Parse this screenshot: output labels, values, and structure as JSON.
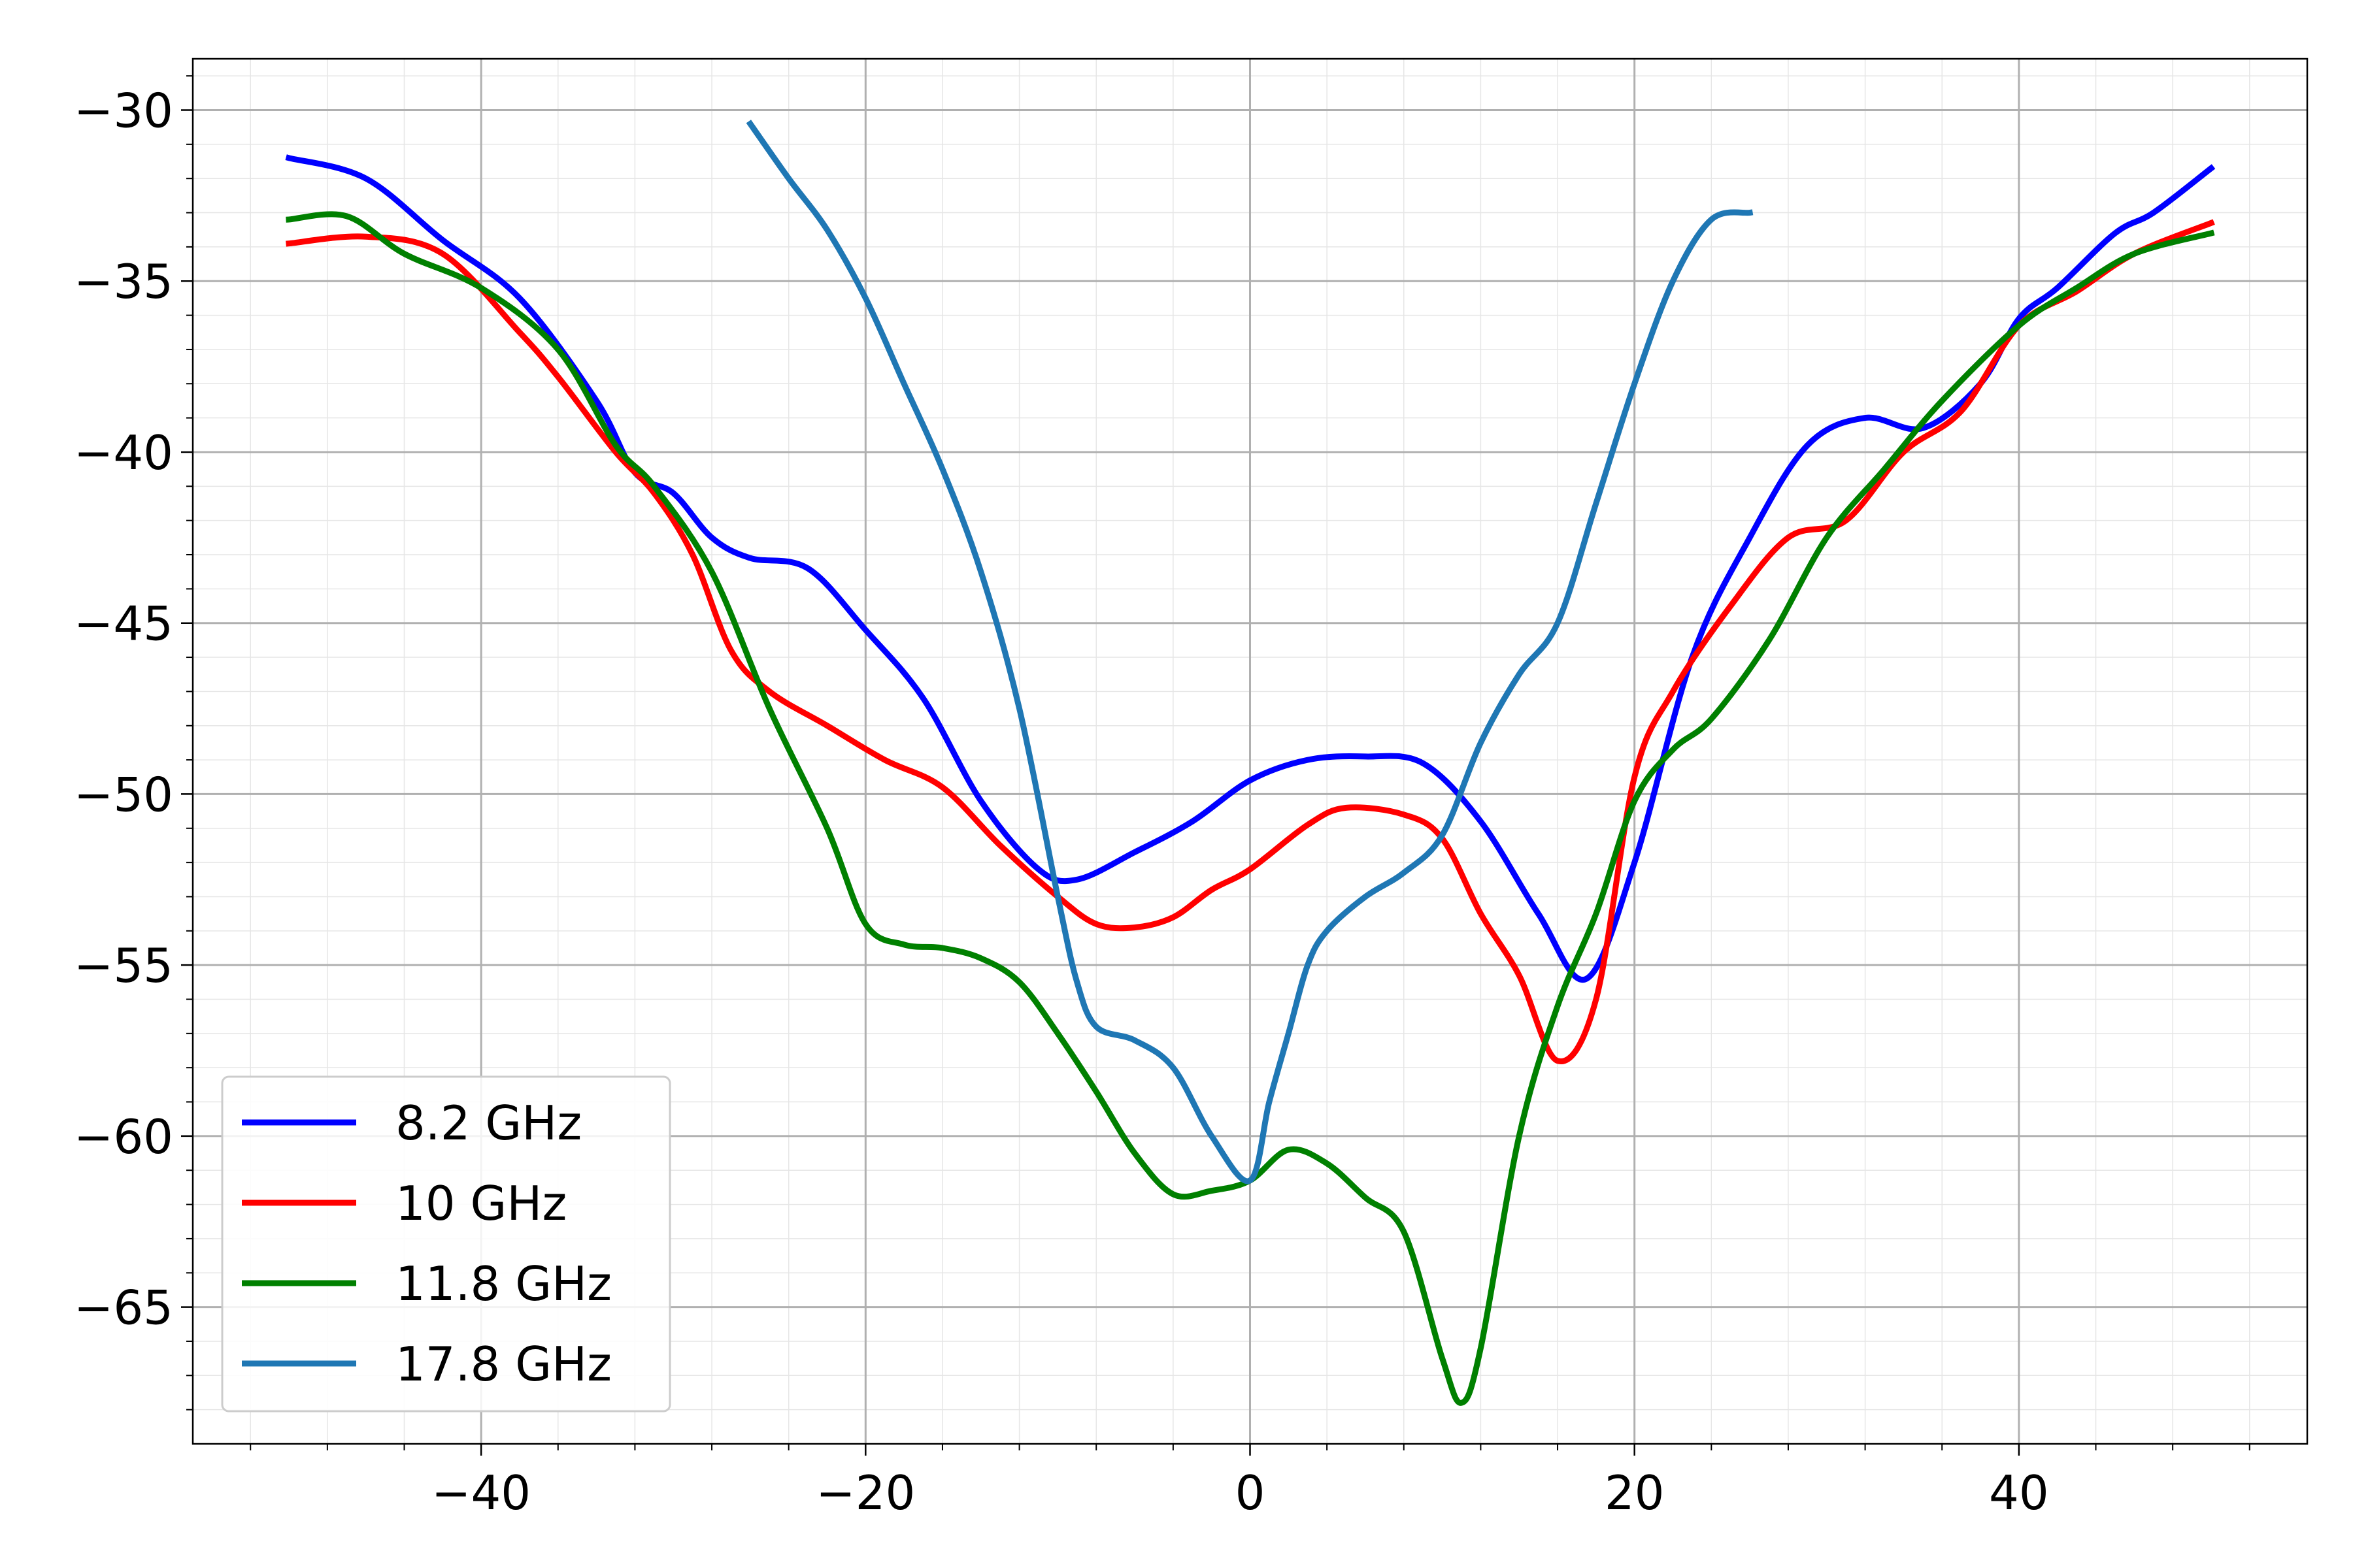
{
  "chart_data": {
    "type": "line",
    "title": "",
    "xlabel": "",
    "ylabel": "",
    "xlim": [
      -55,
      55
    ],
    "ylim": [
      -69.0,
      -28.5
    ],
    "x_ticks": [
      -40,
      -20,
      0,
      20,
      40
    ],
    "x_tick_labels": [
      "−40",
      "−20",
      "0",
      "20",
      "40"
    ],
    "y_ticks": [
      -30,
      -35,
      -40,
      -45,
      -50,
      -55,
      -60,
      -65
    ],
    "y_tick_labels": [
      "−30",
      "−35",
      "−40",
      "−45",
      "−50",
      "−55",
      "−60",
      "−65"
    ],
    "grid": {
      "major": true,
      "minor": true
    },
    "legend_position": "lower-left",
    "series": [
      {
        "name": "8.2 GHz",
        "color": "#0000ff",
        "x": [
          -50,
          -46,
          -42,
          -38,
          -34,
          -32,
          -30,
          -28,
          -26,
          -23,
          -20,
          -17,
          -14,
          -11,
          -9,
          -6,
          -3,
          0,
          3,
          6,
          9,
          12,
          15,
          17.5,
          20,
          23,
          26,
          29,
          32,
          35,
          38,
          40,
          42,
          45,
          47,
          50
        ],
        "y": [
          -31.4,
          -32.0,
          -33.8,
          -35.5,
          -38.5,
          -40.6,
          -41.2,
          -42.5,
          -43.1,
          -43.4,
          -45.2,
          -47.2,
          -50.2,
          -52.2,
          -52.5,
          -51.7,
          -50.8,
          -49.6,
          -49.0,
          -48.9,
          -49.1,
          -50.8,
          -53.5,
          -55.4,
          -52.0,
          -46.0,
          -42.5,
          -39.8,
          -39.0,
          -39.3,
          -38.0,
          -36.1,
          -35.2,
          -33.6,
          -33.0,
          -31.7
        ]
      },
      {
        "name": "10 GHz",
        "color": "#ff0000",
        "x": [
          -50,
          -46,
          -42,
          -38,
          -36,
          -33,
          -31,
          -29,
          -27,
          -25,
          -22,
          -19,
          -16,
          -13,
          -10,
          -8,
          -6,
          -4,
          -2,
          0,
          3,
          5,
          8,
          10,
          12,
          14,
          16,
          18,
          20,
          22,
          25,
          28,
          31,
          34,
          37,
          40,
          43,
          46,
          50
        ],
        "y": [
          -33.9,
          -33.7,
          -34.2,
          -36.5,
          -37.8,
          -40.0,
          -41.2,
          -43.0,
          -45.8,
          -47.0,
          -48.0,
          -49.0,
          -49.8,
          -51.5,
          -53.0,
          -53.8,
          -53.9,
          -53.6,
          -52.8,
          -52.2,
          -50.9,
          -50.4,
          -50.6,
          -51.3,
          -53.5,
          -55.3,
          -57.8,
          -56.0,
          -49.5,
          -47.0,
          -44.5,
          -42.5,
          -42.0,
          -40.0,
          -38.8,
          -36.3,
          -35.3,
          -34.2,
          -33.3
        ]
      },
      {
        "name": "11.8 GHz",
        "color": "#008000",
        "x": [
          -50,
          -47,
          -44,
          -40,
          -36,
          -33,
          -31,
          -28,
          -25,
          -22,
          -20,
          -18,
          -16,
          -14,
          -12,
          -10,
          -8,
          -6,
          -4,
          -2,
          0,
          2,
          4,
          6,
          8,
          10,
          11,
          12,
          14,
          16,
          18,
          20,
          22,
          24,
          27,
          30,
          33,
          36,
          40,
          43,
          46,
          50
        ],
        "y": [
          -33.2,
          -33.1,
          -34.2,
          -35.2,
          -37.0,
          -39.8,
          -41.0,
          -43.5,
          -47.5,
          -51.0,
          -53.8,
          -54.4,
          -54.5,
          -54.8,
          -55.5,
          -57.0,
          -58.7,
          -60.5,
          -61.7,
          -61.6,
          -61.3,
          -60.4,
          -60.8,
          -61.8,
          -62.8,
          -66.5,
          -67.8,
          -66.2,
          -60.0,
          -56.2,
          -53.5,
          -50.2,
          -48.7,
          -47.8,
          -45.5,
          -42.5,
          -40.5,
          -38.5,
          -36.3,
          -35.2,
          -34.2,
          -33.6
        ]
      },
      {
        "name": "17.8 GHz",
        "color": "#1f77b4",
        "x": [
          -26,
          -24,
          -22,
          -20,
          -18,
          -16,
          -14,
          -12,
          -10,
          -9,
          -8,
          -6,
          -4,
          -2,
          0,
          1,
          2,
          3,
          4,
          6,
          8,
          10,
          12,
          14,
          16,
          18,
          20,
          22,
          24,
          26
        ],
        "y": [
          -30.4,
          -32.0,
          -33.5,
          -35.5,
          -38.0,
          -40.5,
          -43.5,
          -47.5,
          -53.0,
          -55.5,
          -56.8,
          -57.2,
          -58.0,
          -60.0,
          -61.3,
          -59.0,
          -57.0,
          -55.0,
          -54.0,
          -53.0,
          -52.3,
          -51.2,
          -48.5,
          -46.5,
          -45.0,
          -41.5,
          -38.0,
          -35.0,
          -33.2,
          -33.0
        ]
      }
    ]
  }
}
